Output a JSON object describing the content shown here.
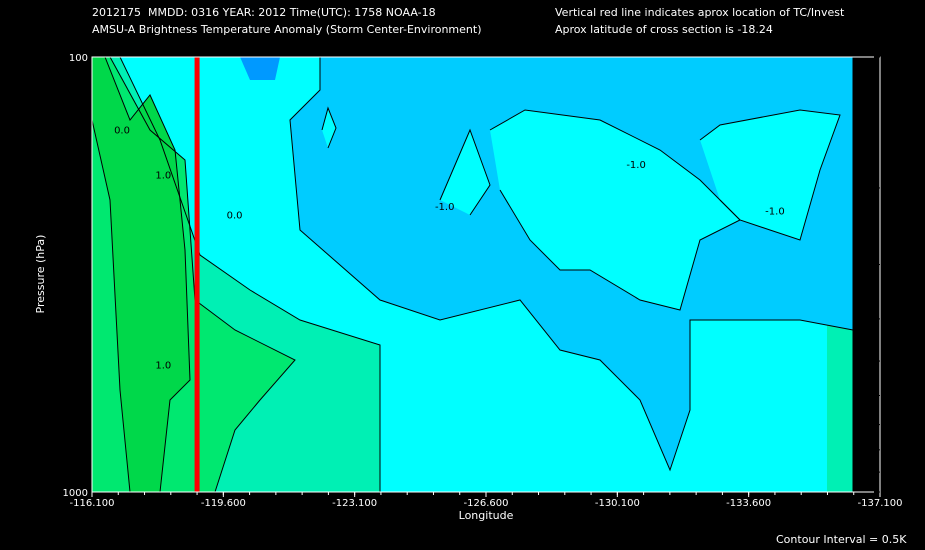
{
  "header": {
    "line1_left": "2012175  MMDD: 0316 YEAR: 2012 Time(UTC): 1758 NOAA-18",
    "line2_left": "AMSU-A Brightness Temperature Anomaly (Storm Center-Environment)",
    "line1_right": "Vertical red line indicates aprox location of TC/Invest",
    "line2_right": "Aprox latitude of cross section is -18.24"
  },
  "footer": {
    "contour_interval": "Contour Interval = 0.5K"
  },
  "colors": {
    "background": "#000000",
    "band_neg15": "#0099ff",
    "band_neg10": "#00ccff",
    "band_neg05": "#00ffff",
    "band_00": "#00f0b4",
    "band_pos05": "#00e870",
    "band_pos10": "#00d84a",
    "storm_line": "#ff0000",
    "contour": "#000000"
  },
  "chart_data": {
    "type": "contour",
    "xlabel": "Longitude",
    "ylabel": "Pressure (hPa)",
    "xlim": [
      -116.1,
      -137.1
    ],
    "ylim": [
      1000,
      100
    ],
    "y_scale": "log",
    "x_ticks": [
      "-116.100",
      "-119.600",
      "-123.100",
      "-126.600",
      "-130.100",
      "-133.600",
      "-137.100"
    ],
    "y_ticks": [
      "100",
      "1000"
    ],
    "storm_center_longitude": -118.9,
    "cross_section_latitude": -18.24,
    "contour_levels": [
      -1.5,
      -1.0,
      -0.5,
      0.0,
      0.5,
      1.0
    ],
    "contour_labels": [
      {
        "text": "0.0",
        "lon": -116.9,
        "p": 150
      },
      {
        "text": "1.0",
        "lon": -118.0,
        "p": 190
      },
      {
        "text": "0.0",
        "lon": -119.9,
        "p": 235
      },
      {
        "text": "1.0",
        "lon": -118.0,
        "p": 520
      },
      {
        "text": "-1.0",
        "lon": -130.6,
        "p": 180
      },
      {
        "text": "-1.0",
        "lon": -134.3,
        "p": 230
      },
      {
        "text": "-1.0",
        "lon": -125.5,
        "p": 225
      }
    ],
    "grid": false,
    "legend": "none"
  }
}
